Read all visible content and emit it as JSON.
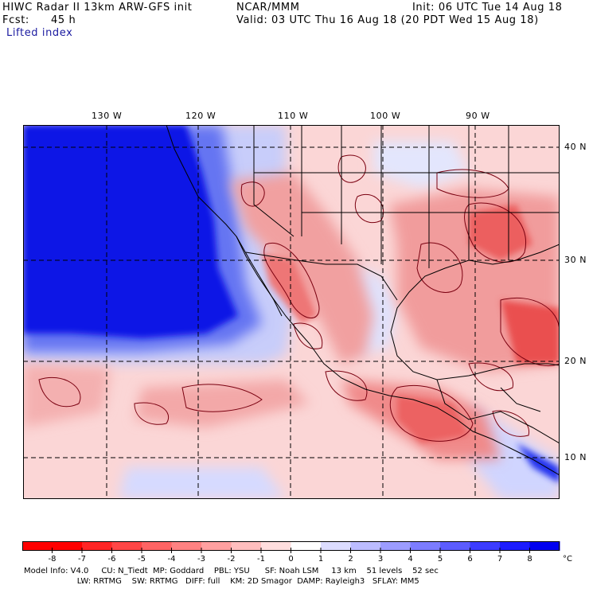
{
  "header": {
    "title": "HIWC Radar II 13km ARW-GFS init",
    "org": "NCAR/MMM",
    "init": "Init: 06 UTC Tue 14 Aug 18",
    "fcst_label": "Fcst:",
    "fcst_value": "45 h",
    "valid": "Valid: 03 UTC Thu 16 Aug 18 (20 PDT Wed 15 Aug 18)",
    "field": "Lifted index"
  },
  "map": {
    "longitude_labels": [
      "130 W",
      "120 W",
      "110 W",
      "100 W",
      "90 W"
    ],
    "latitude_labels": [
      "40 N",
      "30 N",
      "20 N",
      "10 N"
    ],
    "colors": {
      "ocean_unstable_none": "#ffffff",
      "deep_blue": "#0a14e6",
      "mid_blue": "#5a6af0",
      "light_blue": "#c8cdfa",
      "light_red": "#f8c8c8",
      "mid_red": "#ee7070",
      "deep_red": "#e03030",
      "contour": "#7a0010",
      "border": "#000000"
    }
  },
  "legend": {
    "unit": "°C",
    "ticks": [
      "-8",
      "-7",
      "-6",
      "-5",
      "-4",
      "-3",
      "-2",
      "-1",
      "0",
      "1",
      "2",
      "3",
      "4",
      "5",
      "6",
      "7",
      "8"
    ],
    "colors": [
      "#ff0000",
      "#ff2525",
      "#ff4646",
      "#ff6464",
      "#ff8282",
      "#ffa0a0",
      "#ffbebe",
      "#ffdede",
      "#ffffff",
      "#dcdcff",
      "#bcbcff",
      "#9c9cff",
      "#7c7cff",
      "#5c5cff",
      "#3c3cff",
      "#1c1cff",
      "#0000f0"
    ]
  },
  "footer": {
    "line1": "Model Info: V4.0     CU: N_Tiedt  MP: Goddard    PBL: YSU      SF: Noah LSM     13 km    51 levels    52 sec",
    "line2": "                     LW: RRTMG    SW: RRTMG   DIFF: full    KM: 2D Smagor  DAMP: Rayleigh3   SFLAY: MM5"
  }
}
